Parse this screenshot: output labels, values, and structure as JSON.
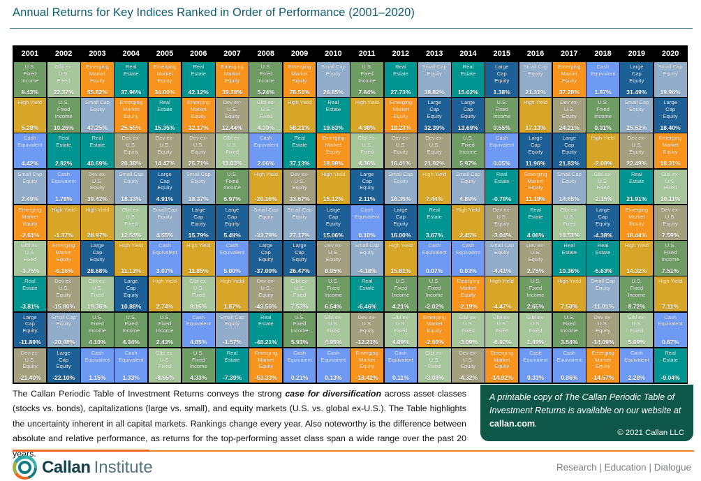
{
  "title": "Annual Returns for Key Indices Ranked in Order of Performance (2001–2020)",
  "asset_classes": {
    "usf": {
      "name": "U.S. Fixed Income",
      "display": "U.S.\nFixed\nIncome",
      "color": "#6f9b65"
    },
    "glbl": {
      "name": "Glbl ex-U.S. Fixed",
      "display": "Glbl ex-\nU.S.\nFixed",
      "color": "#a7c69b"
    },
    "em": {
      "name": "Emerging Market Equity",
      "display": "Emerging\nMarket\nEquity",
      "color": "#f7941e"
    },
    "re": {
      "name": "Real Estate",
      "display": "Real\nEstate",
      "color": "#009590"
    },
    "hy": {
      "name": "High Yield",
      "display": "High Yield",
      "color": "#d7a528"
    },
    "cash": {
      "name": "Cash Equivalent",
      "display": "Cash\nEquivalent",
      "color": "#6e9af3"
    },
    "sc": {
      "name": "Small Cap Equity",
      "display": "Small Cap\nEquity",
      "color": "#92adc9"
    },
    "lc": {
      "name": "Large Cap Equity",
      "display": "Large\nCap\nEquity",
      "color": "#1d6096"
    },
    "dev": {
      "name": "Dev ex-U.S. Equity",
      "display": "Dev ex-\nU.S.\nEquity",
      "color": "#a3a07f"
    }
  },
  "chart_data": {
    "type": "table",
    "title": "Annual Returns for Key Indices Ranked in Order of Performance (2001–2020)",
    "unit": "percent annual return",
    "years": [
      "2001",
      "2002",
      "2003",
      "2004",
      "2005",
      "2006",
      "2007",
      "2008",
      "2009",
      "2010",
      "2011",
      "2012",
      "2013",
      "2014",
      "2015",
      "2016",
      "2017",
      "2018",
      "2019",
      "2020"
    ],
    "rankings": [
      [
        [
          "usf",
          8.43
        ],
        [
          "hy",
          5.28
        ],
        [
          "cash",
          4.42
        ],
        [
          "sc",
          2.49
        ],
        [
          "em",
          -2.61
        ],
        [
          "glbl",
          -3.75
        ],
        [
          "re",
          -3.81
        ],
        [
          "lc",
          -11.89
        ],
        [
          "dev",
          -21.4
        ]
      ],
      [
        [
          "glbl",
          22.37
        ],
        [
          "usf",
          10.26
        ],
        [
          "re",
          2.82
        ],
        [
          "cash",
          1.78
        ],
        [
          "hy",
          -1.37
        ],
        [
          "em",
          -6.16
        ],
        [
          "dev",
          -15.8
        ],
        [
          "sc",
          -20.48
        ],
        [
          "lc",
          -22.1
        ]
      ],
      [
        [
          "em",
          55.82
        ],
        [
          "sc",
          47.25
        ],
        [
          "re",
          40.69
        ],
        [
          "dev",
          39.42
        ],
        [
          "hy",
          28.97
        ],
        [
          "lc",
          28.68
        ],
        [
          "glbl",
          19.36
        ],
        [
          "usf",
          4.1
        ],
        [
          "cash",
          1.15
        ]
      ],
      [
        [
          "re",
          37.96
        ],
        [
          "em",
          25.55
        ],
        [
          "dev",
          20.38
        ],
        [
          "sc",
          18.33
        ],
        [
          "glbl",
          12.54
        ],
        [
          "hy",
          11.13
        ],
        [
          "lc",
          10.88
        ],
        [
          "usf",
          4.34
        ],
        [
          "cash",
          1.33
        ]
      ],
      [
        [
          "em",
          34.0
        ],
        [
          "re",
          15.35
        ],
        [
          "dev",
          14.47
        ],
        [
          "lc",
          4.91
        ],
        [
          "sc",
          4.55
        ],
        [
          "cash",
          3.07
        ],
        [
          "hy",
          2.74
        ],
        [
          "usf",
          2.43
        ],
        [
          "glbl",
          -8.65
        ]
      ],
      [
        [
          "re",
          42.12
        ],
        [
          "em",
          32.17
        ],
        [
          "dev",
          25.71
        ],
        [
          "sc",
          18.37
        ],
        [
          "lc",
          15.79
        ],
        [
          "hy",
          11.85
        ],
        [
          "glbl",
          8.16
        ],
        [
          "cash",
          4.85
        ],
        [
          "usf",
          4.33
        ]
      ],
      [
        [
          "em",
          39.38
        ],
        [
          "dev",
          12.44
        ],
        [
          "glbl",
          11.03
        ],
        [
          "usf",
          6.97
        ],
        [
          "lc",
          5.49
        ],
        [
          "cash",
          5.0
        ],
        [
          "hy",
          1.87
        ],
        [
          "sc",
          -1.57
        ],
        [
          "re",
          -7.39
        ]
      ],
      [
        [
          "usf",
          5.24
        ],
        [
          "glbl",
          4.39
        ],
        [
          "cash",
          2.06
        ],
        [
          "hy",
          -26.16
        ],
        [
          "sc",
          -33.79
        ],
        [
          "lc",
          -37.0
        ],
        [
          "dev",
          -43.56
        ],
        [
          "re",
          -48.21
        ],
        [
          "em",
          -53.33
        ]
      ],
      [
        [
          "em",
          78.51
        ],
        [
          "hy",
          58.21
        ],
        [
          "re",
          37.13
        ],
        [
          "dev",
          33.67
        ],
        [
          "sc",
          27.17
        ],
        [
          "lc",
          26.47
        ],
        [
          "glbl",
          7.53
        ],
        [
          "usf",
          5.93
        ],
        [
          "cash",
          0.21
        ]
      ],
      [
        [
          "sc",
          26.85
        ],
        [
          "re",
          19.63
        ],
        [
          "em",
          18.88
        ],
        [
          "hy",
          15.12
        ],
        [
          "lc",
          15.06
        ],
        [
          "dev",
          8.95
        ],
        [
          "usf",
          6.54
        ],
        [
          "glbl",
          4.95
        ],
        [
          "cash",
          0.13
        ]
      ],
      [
        [
          "usf",
          7.84
        ],
        [
          "hy",
          4.98
        ],
        [
          "glbl",
          4.36
        ],
        [
          "lc",
          2.11
        ],
        [
          "cash",
          0.1
        ],
        [
          "sc",
          -4.18
        ],
        [
          "re",
          -6.46
        ],
        [
          "dev",
          -12.21
        ],
        [
          "em",
          -18.42
        ]
      ],
      [
        [
          "re",
          27.73
        ],
        [
          "em",
          18.23
        ],
        [
          "dev",
          16.41
        ],
        [
          "sc",
          16.35
        ],
        [
          "lc",
          16.0
        ],
        [
          "hy",
          15.81
        ],
        [
          "usf",
          4.21
        ],
        [
          "glbl",
          4.09
        ],
        [
          "cash",
          0.11
        ]
      ],
      [
        [
          "sc",
          38.82
        ],
        [
          "lc",
          32.39
        ],
        [
          "dev",
          21.02
        ],
        [
          "hy",
          7.44
        ],
        [
          "re",
          3.67
        ],
        [
          "cash",
          0.07
        ],
        [
          "usf",
          -2.02
        ],
        [
          "em",
          -2.6
        ],
        [
          "glbl",
          -3.08
        ]
      ],
      [
        [
          "re",
          15.02
        ],
        [
          "lc",
          13.69
        ],
        [
          "usf",
          5.97
        ],
        [
          "sc",
          4.89
        ],
        [
          "hy",
          2.45
        ],
        [
          "cash",
          0.03
        ],
        [
          "em",
          -2.19
        ],
        [
          "glbl",
          -3.09
        ],
        [
          "dev",
          -4.32
        ]
      ],
      [
        [
          "lc",
          1.38
        ],
        [
          "usf",
          0.55
        ],
        [
          "cash",
          0.05
        ],
        [
          "re",
          -0.79
        ],
        [
          "dev",
          -3.04
        ],
        [
          "sc",
          -4.41
        ],
        [
          "hy",
          -4.47
        ],
        [
          "glbl",
          -6.02
        ],
        [
          "em",
          -14.92
        ]
      ],
      [
        [
          "sc",
          21.31
        ],
        [
          "hy",
          17.13
        ],
        [
          "lc",
          11.96
        ],
        [
          "em",
          11.19
        ],
        [
          "re",
          4.06
        ],
        [
          "dev",
          2.75
        ],
        [
          "usf",
          2.65
        ],
        [
          "glbl",
          1.49
        ],
        [
          "cash",
          0.33
        ]
      ],
      [
        [
          "em",
          37.28
        ],
        [
          "dev",
          24.21
        ],
        [
          "lc",
          21.83
        ],
        [
          "sc",
          14.65
        ],
        [
          "glbl",
          10.51
        ],
        [
          "re",
          10.36
        ],
        [
          "hy",
          7.5
        ],
        [
          "usf",
          3.54
        ],
        [
          "cash",
          0.86
        ]
      ],
      [
        [
          "cash",
          1.87
        ],
        [
          "usf",
          0.01
        ],
        [
          "hy",
          -2.08
        ],
        [
          "glbl",
          -2.15
        ],
        [
          "lc",
          -4.38
        ],
        [
          "re",
          -5.63
        ],
        [
          "sc",
          -11.01
        ],
        [
          "dev",
          -14.09
        ],
        [
          "em",
          -14.57
        ]
      ],
      [
        [
          "lc",
          31.49
        ],
        [
          "sc",
          25.52
        ],
        [
          "dev",
          22.49
        ],
        [
          "re",
          21.91
        ],
        [
          "em",
          18.44
        ],
        [
          "hy",
          14.32
        ],
        [
          "usf",
          8.72
        ],
        [
          "glbl",
          5.09
        ],
        [
          "cash",
          2.28
        ]
      ],
      [
        [
          "sc",
          19.96
        ],
        [
          "lc",
          18.4
        ],
        [
          "em",
          18.31
        ],
        [
          "glbl",
          10.11
        ],
        [
          "dev",
          7.59
        ],
        [
          "usf",
          7.51
        ],
        [
          "hy",
          7.11
        ],
        [
          "cash",
          0.67
        ],
        [
          "re",
          -9.04
        ]
      ]
    ]
  },
  "footer": {
    "para_before": "The Callan Periodic Table of Investment Returns conveys the strong ",
    "para_em": "case for diversification",
    "para_after": " across asset classes (stocks vs. bonds), capitalizations (large vs. small), and equity markets (U.S. vs. global ex-U.S.). The Table highlights the uncertainty inherent in all capital markets. Rankings change every year. Also noteworthy is the difference between absolute and relative performance, as returns for the top-performing asset class span a wide range over the past 20 years.",
    "callout_before": "A printable copy of The Callan Periodic Table of Investment Returns is available on our website at ",
    "callout_link": "callan.com",
    "callout_after": ".",
    "copyright": "© 2021 Callan LLC"
  },
  "brand": {
    "name_bold": "Callan",
    "name_light": "Institute",
    "tagline": "Research | Education | Dialogue",
    "accent_orange": "#f26822",
    "teal": "#0d5c6d",
    "callout_green": "#0f5849"
  }
}
